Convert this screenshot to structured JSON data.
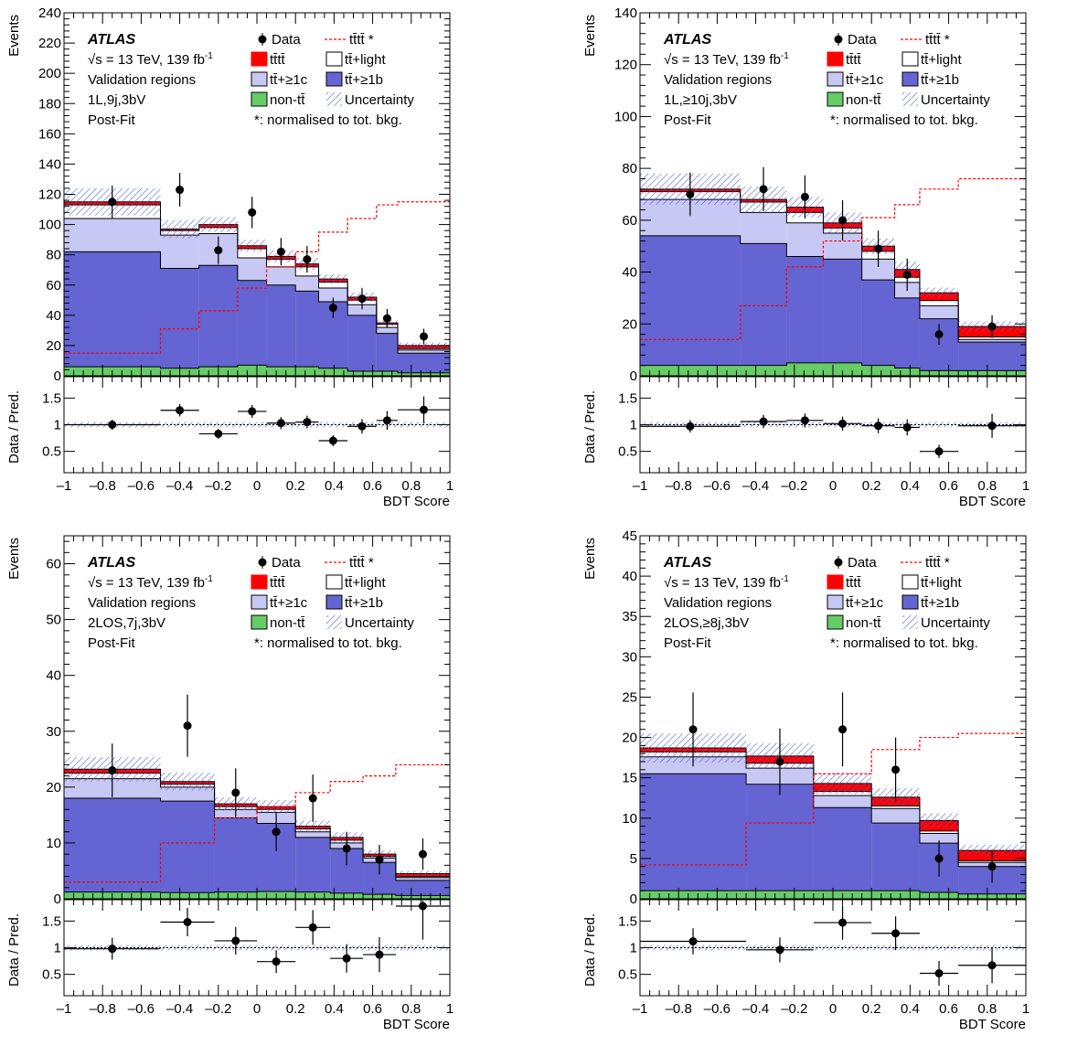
{
  "legend": {
    "atlas": "ATLAS",
    "energy": "√s = 13 TeV, 139 fb",
    "energy_sup": "-1",
    "region_type": "Validation regions",
    "fit": "Post-Fit",
    "data": "Data",
    "tttt_norm": "tt̄tt̄ *",
    "tttt": "tt̄tt̄",
    "ttlight": "tt̄+light",
    "tt1c": "tt̄+≥1c",
    "tt1b": "tt̄+≥1b",
    "nontt": "non-tt̄",
    "uncertainty": "Uncertainty",
    "norm_note": "*: normalised to tot. bkg."
  },
  "colors": {
    "tttt": "#ff0000",
    "ttlight": "#ffffff",
    "tt1c": "#c8c8f5",
    "tt1b": "#6464d2",
    "nontt": "#66cc66",
    "uncertainty_hatch": "#4a5ad0",
    "signal_line": "#ff0000"
  },
  "chart_data": [
    {
      "type": "bar",
      "region": "1L,9j,3bV",
      "xlabel": "BDT Score",
      "ylabel": "Events",
      "ratio_ylabel": "Data / Pred.",
      "xlim": [
        -1,
        1
      ],
      "ylim": [
        0,
        240
      ],
      "ratio_ylim": [
        0.1,
        1.9
      ],
      "yticks": [
        0,
        20,
        40,
        60,
        80,
        100,
        120,
        140,
        160,
        180,
        200,
        220,
        240
      ],
      "ratio_yticks": [
        0.5,
        1,
        1.5
      ],
      "xticks": [
        -1,
        -0.8,
        -0.6,
        -0.4,
        -0.2,
        0,
        0.2,
        0.4,
        0.6,
        0.8,
        1
      ],
      "bin_edges": [
        -1,
        -0.5,
        -0.3,
        -0.1,
        0.05,
        0.2,
        0.32,
        0.47,
        0.62,
        0.73,
        1
      ],
      "series": [
        {
          "name": "non-tt̄",
          "values": [
            6,
            5,
            6,
            7,
            6,
            6,
            5,
            3,
            3,
            2
          ]
        },
        {
          "name": "tt̄+≥1b",
          "values": [
            82,
            71,
            73,
            63,
            60,
            56,
            49,
            40,
            28,
            15
          ]
        },
        {
          "name": "tt̄+≥1c",
          "values": [
            104,
            93,
            94,
            78,
            72,
            66,
            58,
            47,
            32,
            17
          ]
        },
        {
          "name": "tt̄+light",
          "values": [
            113,
            96,
            98,
            84,
            77,
            72,
            62,
            50,
            34,
            18
          ]
        },
        {
          "name": "tt̄tt̄",
          "values": [
            115,
            97,
            100,
            86,
            79,
            74,
            64,
            52,
            35,
            20
          ]
        }
      ],
      "uncertainty": [
        9,
        6,
        5,
        4,
        4,
        4,
        3,
        3,
        2,
        2
      ],
      "signal_scaled": [
        15,
        31,
        43,
        58,
        72,
        82,
        95,
        104,
        113,
        115
      ],
      "data": [
        115,
        123,
        83,
        108,
        82,
        77,
        45,
        51,
        38,
        26
      ],
      "ratio": [
        1.0,
        1.27,
        0.83,
        1.25,
        1.03,
        1.05,
        0.7,
        0.97,
        1.08,
        1.28
      ]
    },
    {
      "type": "bar",
      "region": "1L,≥10j,3bV",
      "xlabel": "BDT Score",
      "ylabel": "Events",
      "ratio_ylabel": "Data / Pred.",
      "xlim": [
        -1,
        1
      ],
      "ylim": [
        0,
        140
      ],
      "ratio_ylim": [
        0.1,
        1.9
      ],
      "yticks": [
        0,
        20,
        40,
        60,
        80,
        100,
        120,
        140
      ],
      "ratio_yticks": [
        0.5,
        1,
        1.5
      ],
      "xticks": [
        -1,
        -0.8,
        -0.6,
        -0.4,
        -0.2,
        0,
        0.2,
        0.4,
        0.6,
        0.8,
        1
      ],
      "bin_edges": [
        -1,
        -0.48,
        -0.24,
        -0.05,
        0.15,
        0.32,
        0.45,
        0.65,
        1
      ],
      "series": [
        {
          "name": "non-tt̄",
          "values": [
            4,
            4,
            5,
            5,
            4,
            3,
            2,
            2
          ]
        },
        {
          "name": "tt̄+≥1b",
          "values": [
            54,
            51,
            46,
            45,
            37,
            30,
            22,
            13
          ]
        },
        {
          "name": "tt̄+≥1c",
          "values": [
            68,
            63,
            59,
            55,
            45,
            36,
            27,
            14
          ]
        },
        {
          "name": "tt̄+light",
          "values": [
            71,
            67,
            63,
            57,
            48,
            38,
            29,
            15
          ]
        },
        {
          "name": "tt̄tt̄",
          "values": [
            72,
            68,
            65,
            59,
            50,
            41,
            32,
            19
          ]
        }
      ],
      "uncertainty": [
        6,
        5,
        4,
        4,
        3,
        3,
        2,
        2
      ],
      "signal_scaled": [
        14,
        27,
        42,
        52,
        61,
        66,
        72,
        76
      ],
      "data": [
        70,
        72,
        69,
        60,
        49,
        39,
        16,
        19
      ],
      "ratio": [
        0.97,
        1.06,
        1.08,
        1.02,
        0.98,
        0.95,
        0.5,
        0.98
      ]
    },
    {
      "type": "bar",
      "region": "2LOS,7j,3bV",
      "xlabel": "BDT Score",
      "ylabel": "Events",
      "ratio_ylabel": "Data / Pred.",
      "xlim": [
        -1,
        1
      ],
      "ylim": [
        0,
        65
      ],
      "ratio_ylim": [
        0.1,
        1.9
      ],
      "yticks": [
        0,
        10,
        20,
        30,
        40,
        50,
        60
      ],
      "ratio_yticks": [
        0.5,
        1,
        1.5
      ],
      "xticks": [
        -1,
        -0.8,
        -0.6,
        -0.4,
        -0.2,
        0,
        0.2,
        0.4,
        0.6,
        0.8,
        1
      ],
      "bin_edges": [
        -1,
        -0.5,
        -0.22,
        0,
        0.2,
        0.38,
        0.55,
        0.72,
        1
      ],
      "series": [
        {
          "name": "non-tt̄",
          "values": [
            1.2,
            1.1,
            1.2,
            1.3,
            1.2,
            1.0,
            0.8,
            0.6
          ]
        },
        {
          "name": "tt̄+≥1b",
          "values": [
            18,
            17.5,
            14.5,
            13.5,
            11,
            9,
            6.5,
            3.3
          ]
        },
        {
          "name": "tt̄+≥1c",
          "values": [
            21.5,
            20,
            16,
            15.5,
            12,
            10,
            7.3,
            3.8
          ]
        },
        {
          "name": "tt̄+light",
          "values": [
            22.5,
            20.5,
            16.5,
            16,
            12.5,
            10.5,
            7.6,
            4.0
          ]
        },
        {
          "name": "tt̄tt̄",
          "values": [
            23.2,
            21,
            17,
            16.5,
            13,
            11,
            8,
            4.5
          ]
        }
      ],
      "uncertainty": [
        2.2,
        1.6,
        1.2,
        1.2,
        1.0,
        0.9,
        0.7,
        0.5
      ],
      "signal_scaled": [
        3,
        10,
        14.5,
        16.5,
        19,
        21,
        22,
        24
      ],
      "data": [
        23,
        31,
        19,
        12,
        18,
        9,
        7,
        8
      ],
      "ratio": [
        0.98,
        1.48,
        1.13,
        0.74,
        1.38,
        0.8,
        0.87,
        1.78
      ]
    },
    {
      "type": "bar",
      "region": "2LOS,≥8j,3bV",
      "xlabel": "BDT Score",
      "ylabel": "Events",
      "ratio_ylabel": "Data / Pred.",
      "xlim": [
        -1,
        1
      ],
      "ylim": [
        0,
        45
      ],
      "ratio_ylim": [
        0.1,
        1.9
      ],
      "yticks": [
        0,
        5,
        10,
        15,
        20,
        25,
        30,
        35,
        40,
        45
      ],
      "ratio_yticks": [
        0.5,
        1,
        1.5
      ],
      "xticks": [
        -1,
        -0.8,
        -0.6,
        -0.4,
        -0.2,
        0,
        0.2,
        0.4,
        0.6,
        0.8,
        1
      ],
      "bin_edges": [
        -1,
        -0.45,
        -0.1,
        0.2,
        0.45,
        0.65,
        1
      ],
      "series": [
        {
          "name": "non-tt̄",
          "values": [
            1.0,
            1.0,
            1.0,
            1.0,
            0.8,
            0.6
          ]
        },
        {
          "name": "tt̄+≥1b",
          "values": [
            15.5,
            14.2,
            11.3,
            9.4,
            6.9,
            4.0
          ]
        },
        {
          "name": "tt̄+≥1c",
          "values": [
            17.6,
            16.2,
            12.8,
            11.2,
            8.1,
            4.5
          ]
        },
        {
          "name": "tt̄+light",
          "values": [
            18.2,
            16.8,
            13.3,
            11.5,
            8.4,
            4.7
          ]
        },
        {
          "name": "tt̄tt̄",
          "values": [
            18.7,
            17.7,
            14.3,
            12.6,
            9.7,
            6.0
          ]
        }
      ],
      "uncertainty": [
        1.8,
        1.6,
        1.3,
        1.1,
        0.9,
        0.7
      ],
      "signal_scaled": [
        4.2,
        9.4,
        15.5,
        18.5,
        20,
        20.5
      ],
      "data": [
        21,
        17,
        21,
        16,
        5,
        4
      ],
      "ratio": [
        1.12,
        0.96,
        1.47,
        1.27,
        0.52,
        0.67
      ]
    }
  ]
}
